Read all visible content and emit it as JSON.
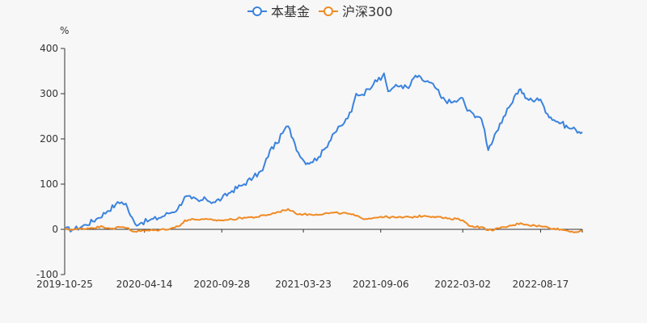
{
  "chart_data": {
    "type": "line",
    "y_unit": "%",
    "ylim": [
      -100,
      400
    ],
    "y_ticks": [
      -100,
      0,
      100,
      200,
      300,
      400
    ],
    "x_tick_labels": [
      "2019-10-25",
      "2020-04-14",
      "2020-09-28",
      "2021-03-23",
      "2021-09-06",
      "2022-03-02",
      "2022-08-17"
    ],
    "x_range": [
      "2019-10-25",
      "2022-11-15"
    ],
    "legend_position": "top-center",
    "grid": false,
    "series": [
      {
        "name": "本基金",
        "color": "#3b83de",
        "points": [
          [
            "2019-10-25",
            0
          ],
          [
            "2019-11-15",
            0
          ],
          [
            "2019-12-10",
            10
          ],
          [
            "2020-01-05",
            25
          ],
          [
            "2020-01-25",
            40
          ],
          [
            "2020-02-12",
            55
          ],
          [
            "2020-02-25",
            60
          ],
          [
            "2020-03-05",
            57
          ],
          [
            "2020-03-15",
            30
          ],
          [
            "2020-03-25",
            12
          ],
          [
            "2020-04-08",
            15
          ],
          [
            "2020-04-25",
            20
          ],
          [
            "2020-05-15",
            25
          ],
          [
            "2020-06-05",
            35
          ],
          [
            "2020-06-25",
            45
          ],
          [
            "2020-07-10",
            72
          ],
          [
            "2020-07-25",
            68
          ],
          [
            "2020-08-10",
            62
          ],
          [
            "2020-08-25",
            67
          ],
          [
            "2020-09-10",
            60
          ],
          [
            "2020-09-28",
            68
          ],
          [
            "2020-10-20",
            85
          ],
          [
            "2020-11-15",
            100
          ],
          [
            "2020-12-05",
            115
          ],
          [
            "2020-12-25",
            130
          ],
          [
            "2021-01-10",
            175
          ],
          [
            "2021-01-25",
            190
          ],
          [
            "2021-02-10",
            220
          ],
          [
            "2021-02-18",
            228
          ],
          [
            "2021-03-01",
            200
          ],
          [
            "2021-03-12",
            170
          ],
          [
            "2021-03-25",
            150
          ],
          [
            "2021-04-08",
            148
          ],
          [
            "2021-04-25",
            160
          ],
          [
            "2021-05-10",
            180
          ],
          [
            "2021-05-25",
            210
          ],
          [
            "2021-06-15",
            230
          ],
          [
            "2021-07-05",
            260
          ],
          [
            "2021-07-15",
            300
          ],
          [
            "2021-07-28",
            298
          ],
          [
            "2021-08-10",
            310
          ],
          [
            "2021-08-25",
            330
          ],
          [
            "2021-09-06",
            330
          ],
          [
            "2021-09-13",
            345
          ],
          [
            "2021-09-22",
            305
          ],
          [
            "2021-10-05",
            315
          ],
          [
            "2021-10-20",
            318
          ],
          [
            "2021-11-05",
            312
          ],
          [
            "2021-11-20",
            340
          ],
          [
            "2021-12-05",
            330
          ],
          [
            "2021-12-20",
            325
          ],
          [
            "2022-01-05",
            310
          ],
          [
            "2022-01-15",
            290
          ],
          [
            "2022-02-05",
            280
          ],
          [
            "2022-02-20",
            285
          ],
          [
            "2022-03-02",
            290
          ],
          [
            "2022-03-12",
            262
          ],
          [
            "2022-03-25",
            255
          ],
          [
            "2022-04-08",
            248
          ],
          [
            "2022-04-18",
            220
          ],
          [
            "2022-04-26",
            175
          ],
          [
            "2022-05-10",
            210
          ],
          [
            "2022-05-25",
            235
          ],
          [
            "2022-06-10",
            270
          ],
          [
            "2022-06-25",
            300
          ],
          [
            "2022-07-05",
            310
          ],
          [
            "2022-07-15",
            290
          ],
          [
            "2022-07-30",
            285
          ],
          [
            "2022-08-10",
            290
          ],
          [
            "2022-08-20",
            280
          ],
          [
            "2022-09-01",
            255
          ],
          [
            "2022-09-15",
            242
          ],
          [
            "2022-10-01",
            235
          ],
          [
            "2022-10-15",
            225
          ],
          [
            "2022-11-01",
            220
          ],
          [
            "2022-11-15",
            215
          ]
        ]
      },
      {
        "name": "沪深300",
        "color": "#f08a24",
        "points": [
          [
            "2019-10-25",
            0
          ],
          [
            "2019-11-20",
            0
          ],
          [
            "2019-12-20",
            3
          ],
          [
            "2020-01-15",
            6
          ],
          [
            "2020-02-05",
            2
          ],
          [
            "2020-02-25",
            5
          ],
          [
            "2020-03-10",
            3
          ],
          [
            "2020-03-20",
            -5
          ],
          [
            "2020-04-14",
            -3
          ],
          [
            "2020-05-10",
            -2
          ],
          [
            "2020-06-10",
            2
          ],
          [
            "2020-06-30",
            8
          ],
          [
            "2020-07-10",
            20
          ],
          [
            "2020-07-30",
            22
          ],
          [
            "2020-08-20",
            22
          ],
          [
            "2020-09-10",
            20
          ],
          [
            "2020-09-28",
            20
          ],
          [
            "2020-10-20",
            22
          ],
          [
            "2020-11-15",
            26
          ],
          [
            "2020-12-10",
            27
          ],
          [
            "2021-01-05",
            32
          ],
          [
            "2021-02-10",
            42
          ],
          [
            "2021-02-18",
            45
          ],
          [
            "2021-03-05",
            36
          ],
          [
            "2021-03-23",
            33
          ],
          [
            "2021-04-20",
            33
          ],
          [
            "2021-05-20",
            36
          ],
          [
            "2021-06-15",
            36
          ],
          [
            "2021-07-05",
            33
          ],
          [
            "2021-07-28",
            24
          ],
          [
            "2021-08-20",
            25
          ],
          [
            "2021-09-06",
            28
          ],
          [
            "2021-10-10",
            26
          ],
          [
            "2021-11-10",
            27
          ],
          [
            "2021-12-10",
            30
          ],
          [
            "2022-01-05",
            28
          ],
          [
            "2022-02-05",
            22
          ],
          [
            "2022-02-20",
            24
          ],
          [
            "2022-03-02",
            20
          ],
          [
            "2022-03-15",
            8
          ],
          [
            "2022-04-10",
            5
          ],
          [
            "2022-04-26",
            -2
          ],
          [
            "2022-05-20",
            2
          ],
          [
            "2022-06-15",
            8
          ],
          [
            "2022-07-05",
            14
          ],
          [
            "2022-07-20",
            10
          ],
          [
            "2022-08-17",
            7
          ],
          [
            "2022-09-15",
            2
          ],
          [
            "2022-10-15",
            -3
          ],
          [
            "2022-11-01",
            -6
          ],
          [
            "2022-11-15",
            -4
          ]
        ]
      }
    ]
  }
}
